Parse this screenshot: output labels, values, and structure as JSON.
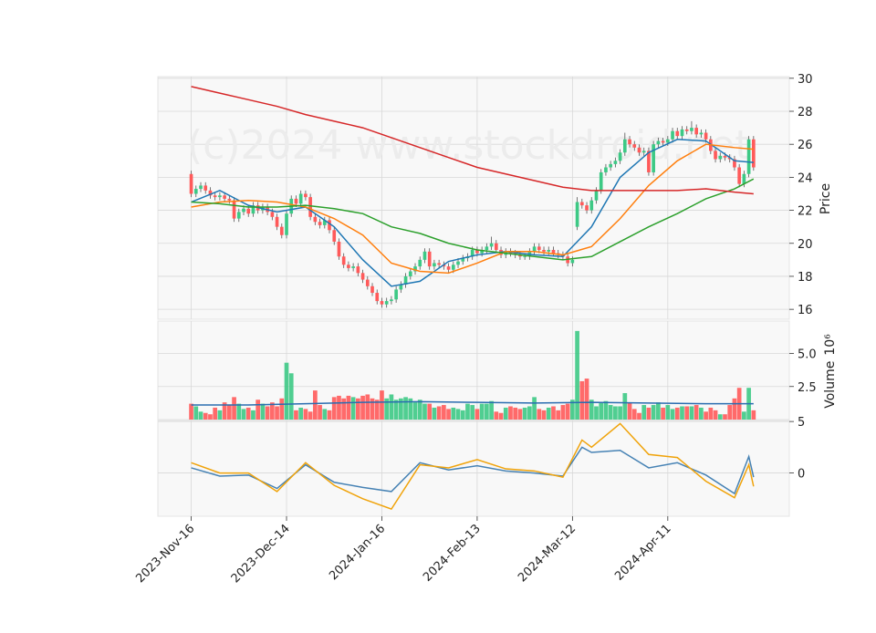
{
  "chart_data": {
    "type": "candlestick",
    "watermark": "(c)2024 www.stockdroid.net",
    "grid": true,
    "xlim": [
      -7,
      125.5
    ],
    "xticks": [
      {
        "value": 0,
        "label": "2023-Nov-16"
      },
      {
        "value": 20,
        "label": "2023-Dec-14"
      },
      {
        "value": 40,
        "label": "2024-Jan-16"
      },
      {
        "value": 60,
        "label": "2024-Feb-13"
      },
      {
        "value": 80,
        "label": "2024-Mar-12"
      },
      {
        "value": 100,
        "label": "2024-Apr-11"
      }
    ],
    "up_color": "#3dc985",
    "down_color": "#ff5a5a",
    "price": {
      "ylabel": "Price",
      "ylim": [
        15.4,
        30.1
      ],
      "yticks": [
        16,
        18,
        20,
        22,
        24,
        26,
        28,
        30
      ],
      "open": [
        24.2,
        23.0,
        23.3,
        23.5,
        23.2,
        22.9,
        22.8,
        22.9,
        22.7,
        22.6,
        21.5,
        21.9,
        22.1,
        21.8,
        22.3,
        22.0,
        22.2,
        21.9,
        21.6,
        21.0,
        20.5,
        21.8,
        22.7,
        22.4,
        23.0,
        22.8,
        21.6,
        21.3,
        21.1,
        21.4,
        20.8,
        20.1,
        19.2,
        18.7,
        18.5,
        18.6,
        18.2,
        17.8,
        17.4,
        17.0,
        16.5,
        16.3,
        16.5,
        16.6,
        17.2,
        17.5,
        18.0,
        18.3,
        18.6,
        19.0,
        19.5,
        18.6,
        18.8,
        18.7,
        18.6,
        18.4,
        18.7,
        18.9,
        19.1,
        19.2,
        19.6,
        19.4,
        19.6,
        19.8,
        20.0,
        19.6,
        19.3,
        19.5,
        19.4,
        19.3,
        19.2,
        19.2,
        19.5,
        19.8,
        19.6,
        19.5,
        19.6,
        19.4,
        19.3,
        19.2,
        18.8,
        21.0,
        22.5,
        22.3,
        22.0,
        22.6,
        23.2,
        24.3,
        24.6,
        24.8,
        25.0,
        25.5,
        26.3,
        26.0,
        25.8,
        25.5,
        25.6,
        24.3,
        26.0,
        26.2,
        26.1,
        26.3,
        26.8,
        26.5,
        26.9,
        26.8,
        27.0,
        26.6,
        26.7,
        26.3,
        25.6,
        25.1,
        25.3,
        25.2,
        25.1,
        24.6,
        23.6,
        24.2,
        26.3
      ],
      "high": [
        24.4,
        23.5,
        23.7,
        23.7,
        23.4,
        23.1,
        23.1,
        23.1,
        22.9,
        22.8,
        22.1,
        22.3,
        22.3,
        22.5,
        22.5,
        22.4,
        22.4,
        22.1,
        21.8,
        21.2,
        22.0,
        22.9,
        22.9,
        23.2,
        23.2,
        23.0,
        21.8,
        21.5,
        21.6,
        21.6,
        21.0,
        20.3,
        19.4,
        18.9,
        18.8,
        18.8,
        18.4,
        18.0,
        17.6,
        17.2,
        16.7,
        16.7,
        16.8,
        17.4,
        17.7,
        18.2,
        18.5,
        18.8,
        19.2,
        19.7,
        19.7,
        19.0,
        19.0,
        18.9,
        18.8,
        18.9,
        19.1,
        19.3,
        19.4,
        19.8,
        19.8,
        19.8,
        20.0,
        20.4,
        20.2,
        19.8,
        19.7,
        19.7,
        19.6,
        19.5,
        19.4,
        19.7,
        20.0,
        20.0,
        19.8,
        19.8,
        19.8,
        19.6,
        19.5,
        19.4,
        19.2,
        22.8,
        22.7,
        22.5,
        22.8,
        23.4,
        24.5,
        24.8,
        25.0,
        25.2,
        25.7,
        26.7,
        26.5,
        26.2,
        26.0,
        25.8,
        25.8,
        26.2,
        26.4,
        26.4,
        26.5,
        27.0,
        27.0,
        27.1,
        27.1,
        27.4,
        27.2,
        26.9,
        26.9,
        26.5,
        25.8,
        25.5,
        25.5,
        25.4,
        25.3,
        24.8,
        24.4,
        26.5,
        26.5
      ],
      "low": [
        22.8,
        22.8,
        23.1,
        23.0,
        22.7,
        22.6,
        22.6,
        22.5,
        22.4,
        21.3,
        21.3,
        21.7,
        21.6,
        21.6,
        21.8,
        21.8,
        21.7,
        21.4,
        20.8,
        20.3,
        20.3,
        21.6,
        22.2,
        22.2,
        22.6,
        21.4,
        21.1,
        20.9,
        20.9,
        20.6,
        19.9,
        19.0,
        18.5,
        18.3,
        18.3,
        18.0,
        17.6,
        17.2,
        16.8,
        16.3,
        16.1,
        16.1,
        16.3,
        16.4,
        17.0,
        17.3,
        17.8,
        18.1,
        18.4,
        18.8,
        18.4,
        18.4,
        18.5,
        18.4,
        18.2,
        18.2,
        18.5,
        18.7,
        18.9,
        19.0,
        19.2,
        19.2,
        19.4,
        19.6,
        19.4,
        19.1,
        19.1,
        19.2,
        19.1,
        19.0,
        19.0,
        19.0,
        19.3,
        19.4,
        19.3,
        19.3,
        19.2,
        19.1,
        19.0,
        18.6,
        18.6,
        20.8,
        22.1,
        21.8,
        21.8,
        22.4,
        23.0,
        24.1,
        24.4,
        24.6,
        24.8,
        25.3,
        25.8,
        25.6,
        25.3,
        25.3,
        24.1,
        24.1,
        25.8,
        25.9,
        25.9,
        26.1,
        26.3,
        26.3,
        26.6,
        26.6,
        26.4,
        26.4,
        26.1,
        25.4,
        24.9,
        24.9,
        25.0,
        24.9,
        24.4,
        23.4,
        23.4,
        24.0,
        24.4
      ],
      "close": [
        23.0,
        23.3,
        23.5,
        23.2,
        22.9,
        22.8,
        22.9,
        22.7,
        22.6,
        21.5,
        21.9,
        22.1,
        21.8,
        22.3,
        22.0,
        22.2,
        21.9,
        21.6,
        21.0,
        20.5,
        21.8,
        22.7,
        22.4,
        23.0,
        22.8,
        21.6,
        21.3,
        21.1,
        21.4,
        20.8,
        20.1,
        19.2,
        18.7,
        18.5,
        18.6,
        18.2,
        17.8,
        17.4,
        17.0,
        16.5,
        16.3,
        16.5,
        16.6,
        17.2,
        17.5,
        18.0,
        18.3,
        18.6,
        19.0,
        19.5,
        18.6,
        18.8,
        18.7,
        18.6,
        18.4,
        18.7,
        18.9,
        19.1,
        19.2,
        19.6,
        19.4,
        19.6,
        19.8,
        20.0,
        19.6,
        19.3,
        19.5,
        19.4,
        19.3,
        19.2,
        19.2,
        19.5,
        19.8,
        19.6,
        19.5,
        19.6,
        19.4,
        19.3,
        19.2,
        18.8,
        19.0,
        22.5,
        22.3,
        22.0,
        22.6,
        23.2,
        24.3,
        24.6,
        24.8,
        25.0,
        25.5,
        26.3,
        26.0,
        25.8,
        25.5,
        25.6,
        24.3,
        26.0,
        26.2,
        26.1,
        26.3,
        26.8,
        26.5,
        26.9,
        26.8,
        27.0,
        26.6,
        26.7,
        26.3,
        25.6,
        25.1,
        25.3,
        25.2,
        25.1,
        24.6,
        23.6,
        24.2,
        26.3,
        24.6
      ],
      "lines": [
        {
          "color": "#1f77b4",
          "x": [
            0,
            6,
            12,
            18,
            24,
            30,
            36,
            42,
            48,
            54,
            60,
            66,
            72,
            78,
            84,
            90,
            96,
            102,
            108,
            114,
            118
          ],
          "values": [
            22.5,
            23.2,
            22.3,
            21.9,
            22.2,
            21.0,
            19.0,
            17.4,
            17.7,
            18.9,
            19.3,
            19.5,
            19.3,
            19.2,
            21.0,
            24.0,
            25.5,
            26.3,
            26.2,
            25.0,
            24.9
          ]
        },
        {
          "color": "#ff7f0e",
          "x": [
            0,
            6,
            12,
            18,
            24,
            30,
            36,
            42,
            48,
            54,
            60,
            66,
            72,
            78,
            84,
            90,
            96,
            102,
            108,
            114,
            118
          ],
          "values": [
            22.2,
            22.5,
            22.6,
            22.5,
            22.2,
            21.5,
            20.5,
            18.8,
            18.3,
            18.2,
            18.8,
            19.5,
            19.5,
            19.3,
            19.8,
            21.5,
            23.5,
            25.0,
            26.0,
            25.8,
            25.7
          ]
        },
        {
          "color": "#2ca02c",
          "x": [
            0,
            6,
            12,
            18,
            24,
            30,
            36,
            42,
            48,
            54,
            60,
            66,
            72,
            78,
            84,
            90,
            96,
            102,
            108,
            114,
            118
          ],
          "values": [
            22.5,
            22.4,
            22.2,
            22.2,
            22.3,
            22.1,
            21.8,
            21.0,
            20.6,
            20.0,
            19.6,
            19.4,
            19.2,
            19.0,
            19.2,
            20.1,
            21.0,
            21.8,
            22.7,
            23.3,
            23.9
          ]
        },
        {
          "color": "#d62728",
          "x": [
            0,
            6,
            12,
            18,
            24,
            30,
            36,
            42,
            48,
            54,
            60,
            66,
            72,
            78,
            84,
            90,
            96,
            102,
            108,
            114,
            118
          ],
          "values": [
            29.5,
            29.1,
            28.7,
            28.3,
            27.8,
            27.4,
            27.0,
            26.4,
            25.8,
            25.2,
            24.6,
            24.2,
            23.8,
            23.4,
            23.2,
            23.2,
            23.2,
            23.2,
            23.3,
            23.1,
            23.0
          ]
        }
      ]
    },
    "volume": {
      "ylabel": "Volume",
      "scale_label": "10⁶",
      "ylim": [
        0,
        7.45
      ],
      "yticks": [
        2.5,
        {
          "value": 5,
          "label": "5.0"
        }
      ],
      "values": [
        1.2,
        1.0,
        0.6,
        0.5,
        0.4,
        0.9,
        0.7,
        1.3,
        1.1,
        1.7,
        1.2,
        0.8,
        0.9,
        0.7,
        1.5,
        1.2,
        1.0,
        1.3,
        1.0,
        1.6,
        4.3,
        3.5,
        0.7,
        0.9,
        0.8,
        0.6,
        2.2,
        1.1,
        0.8,
        0.7,
        1.7,
        1.8,
        1.6,
        1.8,
        1.7,
        1.6,
        1.8,
        1.9,
        1.6,
        1.5,
        2.2,
        1.6,
        1.9,
        1.5,
        1.6,
        1.7,
        1.6,
        1.3,
        1.5,
        1.2,
        1.2,
        0.9,
        1.0,
        1.1,
        0.8,
        0.9,
        0.8,
        0.7,
        1.2,
        1.1,
        0.8,
        1.2,
        1.2,
        1.4,
        0.6,
        0.5,
        0.9,
        1.0,
        0.9,
        0.8,
        0.9,
        1.0,
        1.7,
        0.8,
        0.7,
        0.9,
        1.0,
        0.7,
        1.1,
        1.2,
        1.5,
        6.7,
        2.9,
        3.1,
        1.5,
        1.0,
        1.3,
        1.4,
        1.1,
        1.0,
        1.0,
        2.0,
        1.3,
        0.8,
        0.5,
        1.1,
        0.9,
        1.1,
        1.3,
        0.9,
        1.1,
        0.8,
        0.9,
        1.0,
        1.0,
        1.0,
        1.1,
        0.9,
        0.6,
        0.9,
        0.7,
        0.4,
        0.4,
        1.1,
        1.6,
        2.4,
        0.6,
        2.4,
        0.7
      ],
      "lines": [
        {
          "color": "#2a6db0",
          "x": [
            0,
            12,
            24,
            36,
            48,
            60,
            72,
            84,
            96,
            108,
            118
          ],
          "values": [
            1.1,
            1.1,
            1.2,
            1.3,
            1.35,
            1.3,
            1.25,
            1.3,
            1.25,
            1.2,
            1.2
          ]
        }
      ]
    },
    "indicator": {
      "ylim": [
        -4.2,
        5.1
      ],
      "yticks": [
        0,
        5
      ],
      "lines": [
        {
          "color": "#4682b4",
          "x": [
            0,
            6,
            12,
            18,
            24,
            30,
            36,
            42,
            48,
            54,
            60,
            66,
            72,
            78,
            82,
            84,
            90,
            96,
            102,
            108,
            114,
            117,
            118
          ],
          "values": [
            0.5,
            -0.3,
            -0.2,
            -1.5,
            0.8,
            -0.9,
            -1.4,
            -1.8,
            1.0,
            0.3,
            0.7,
            0.2,
            0.0,
            -0.3,
            2.5,
            2.0,
            2.2,
            0.5,
            1.0,
            -0.2,
            -2.0,
            1.6,
            -0.4
          ]
        },
        {
          "color": "#f0a30a",
          "x": [
            0,
            6,
            12,
            18,
            24,
            30,
            36,
            42,
            48,
            54,
            60,
            66,
            72,
            78,
            82,
            84,
            90,
            96,
            102,
            108,
            114,
            117,
            118
          ],
          "values": [
            1.0,
            0.0,
            0.0,
            -1.8,
            1.0,
            -1.2,
            -2.5,
            -3.5,
            0.8,
            0.5,
            1.3,
            0.4,
            0.2,
            -0.4,
            3.2,
            2.5,
            4.8,
            1.8,
            1.5,
            -0.8,
            -2.4,
            0.8,
            -1.3
          ]
        }
      ]
    }
  }
}
